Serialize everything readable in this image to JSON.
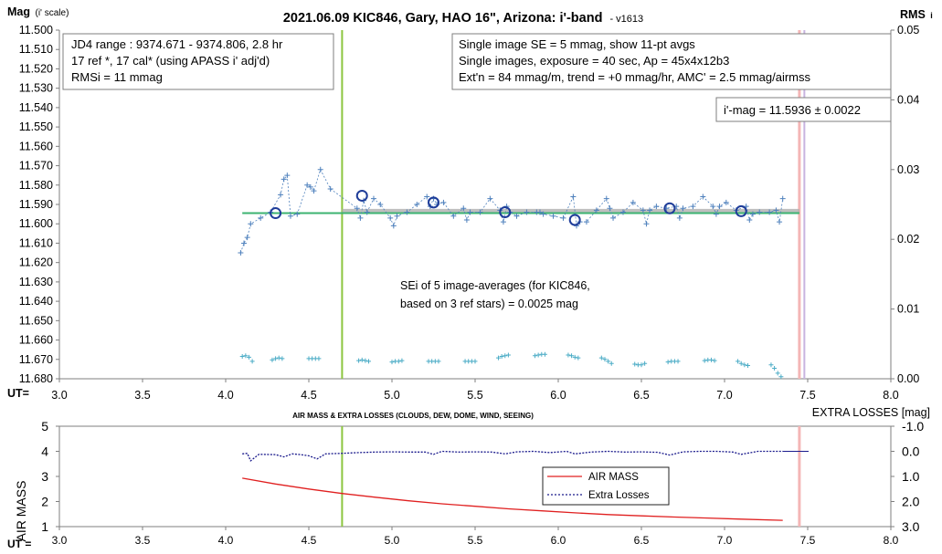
{
  "chart_data": [
    {
      "type": "scatter",
      "title": "2021.06.09 KIC846, Gary, HAO 16\", Arizona: i'-band",
      "version": "- v1613",
      "ylabel_main": "Mag",
      "ylabel_sub": "(i' scale)",
      "y2label_main": "RMS",
      "y2label_sub": "i",
      "xlabel": "UT=",
      "xlim": [
        3.0,
        8.0
      ],
      "ylim": [
        11.5,
        11.68
      ],
      "y_reversed": true,
      "y2lim": [
        0.0,
        0.05
      ],
      "x_ticks": [
        "3.0",
        "3.5",
        "4.0",
        "4.5",
        "5.0",
        "5.5",
        "6.0",
        "6.5",
        "7.0",
        "7.5",
        "8.0"
      ],
      "y_ticks": [
        "11.500",
        "11.510",
        "11.520",
        "11.530",
        "11.540",
        "11.550",
        "11.560",
        "11.570",
        "11.580",
        "11.590",
        "11.600",
        "11.610",
        "11.620",
        "11.630",
        "11.640",
        "11.650",
        "11.660",
        "11.670",
        "11.680"
      ],
      "y2_ticks": [
        "0.05",
        "0.04",
        "0.03",
        "0.02",
        "0.01",
        "0.00"
      ],
      "grid": false,
      "series": [
        {
          "role": "single-images",
          "color": "#4f81bd",
          "x": [
            4.09,
            4.11,
            4.13,
            4.15,
            4.21,
            4.27,
            4.33,
            4.35,
            4.37,
            4.39,
            4.43,
            4.49,
            4.51,
            4.53,
            4.57,
            4.63,
            4.79,
            4.81,
            4.83,
            4.85,
            4.89,
            4.93,
            4.99,
            5.01,
            5.03,
            5.09,
            5.15,
            5.21,
            5.23,
            5.25,
            5.27,
            5.31,
            5.37,
            5.43,
            5.45,
            5.47,
            5.53,
            5.59,
            5.65,
            5.67,
            5.69,
            5.71,
            5.75,
            5.81,
            5.87,
            5.89,
            5.91,
            5.97,
            6.03,
            6.09,
            6.11,
            6.13,
            6.17,
            6.23,
            6.29,
            6.31,
            6.33,
            6.39,
            6.45,
            6.51,
            6.53,
            6.55,
            6.59,
            6.65,
            6.71,
            6.73,
            6.75,
            6.81,
            6.87,
            6.93,
            6.95,
            6.97,
            7.01,
            7.07,
            7.13,
            7.15,
            7.17,
            7.21,
            7.27,
            7.31,
            7.33,
            7.35
          ],
          "y": [
            11.615,
            11.61,
            11.607,
            11.6,
            11.597,
            11.594,
            11.585,
            11.577,
            11.575,
            11.596,
            11.595,
            11.58,
            11.581,
            11.583,
            11.572,
            11.582,
            11.592,
            11.597,
            11.588,
            11.594,
            11.587,
            11.59,
            11.597,
            11.601,
            11.596,
            11.594,
            11.59,
            11.586,
            11.591,
            11.587,
            11.59,
            11.589,
            11.596,
            11.592,
            11.598,
            11.594,
            11.594,
            11.587,
            11.593,
            11.599,
            11.591,
            11.594,
            11.596,
            11.594,
            11.594,
            11.594,
            11.595,
            11.596,
            11.597,
            11.586,
            11.601,
            11.599,
            11.599,
            11.593,
            11.587,
            11.592,
            11.597,
            11.594,
            11.589,
            11.593,
            11.6,
            11.593,
            11.591,
            11.592,
            11.591,
            11.597,
            11.592,
            11.591,
            11.586,
            11.591,
            11.595,
            11.591,
            11.589,
            11.593,
            11.591,
            11.598,
            11.595,
            11.594,
            11.594,
            11.593,
            11.599,
            11.587
          ]
        },
        {
          "role": "11-pt-averages",
          "color": "#1f3d99",
          "x": [
            4.3,
            4.82,
            5.25,
            5.68,
            6.1,
            6.67,
            7.1
          ],
          "y": [
            11.5945,
            11.5855,
            11.589,
            11.594,
            11.598,
            11.592,
            11.5935
          ]
        },
        {
          "role": "rms-i",
          "color": "#4bacc6",
          "x": [
            4.1,
            4.12,
            4.14,
            4.16,
            4.28,
            4.3,
            4.32,
            4.34,
            4.5,
            4.52,
            4.54,
            4.56,
            4.8,
            4.82,
            4.84,
            4.86,
            5.0,
            5.02,
            5.04,
            5.06,
            5.22,
            5.24,
            5.26,
            5.28,
            5.44,
            5.46,
            5.48,
            5.5,
            5.64,
            5.66,
            5.68,
            5.7,
            5.86,
            5.88,
            5.9,
            5.92,
            6.06,
            6.08,
            6.1,
            6.12,
            6.26,
            6.28,
            6.3,
            6.32,
            6.46,
            6.48,
            6.5,
            6.52,
            6.66,
            6.68,
            6.7,
            6.72,
            6.88,
            6.9,
            6.92,
            6.94,
            7.08,
            7.1,
            7.12,
            7.14,
            7.28,
            7.3,
            7.32,
            7.34
          ],
          "y": [
            0.0032,
            0.0033,
            0.0031,
            0.0025,
            0.0027,
            0.0029,
            0.003,
            0.0029,
            0.0029,
            0.0029,
            0.0029,
            0.0029,
            0.0026,
            0.0027,
            0.0026,
            0.0025,
            0.0024,
            0.0025,
            0.0025,
            0.0026,
            0.0025,
            0.0025,
            0.0025,
            0.0025,
            0.0025,
            0.0025,
            0.0025,
            0.0025,
            0.003,
            0.0032,
            0.0033,
            0.0034,
            0.0033,
            0.0034,
            0.0035,
            0.0035,
            0.0034,
            0.0033,
            0.0031,
            0.003,
            0.003,
            0.0028,
            0.0025,
            0.0022,
            0.0021,
            0.002,
            0.002,
            0.0022,
            0.0024,
            0.0025,
            0.0025,
            0.0025,
            0.0026,
            0.0027,
            0.0027,
            0.0026,
            0.0025,
            0.0022,
            0.002,
            0.0019,
            0.002,
            0.0015,
            0.0008,
            0.0003
          ]
        }
      ],
      "fit_level": 11.5945,
      "fit_range": [
        4.1,
        7.45
      ],
      "reference_band": {
        "x": [
          4.7,
          7.45
        ],
        "y": 11.5935
      },
      "vertical_markers": [
        {
          "x": 4.7,
          "color": "#8cc63f"
        },
        {
          "x": 7.45,
          "color": "#f4b6b6"
        },
        {
          "x": 7.48,
          "color": "#c8b4e0"
        }
      ],
      "annotations": {
        "box_left": [
          "JD4 range : 9374.671 - 9374.806, 2.8  hr",
          "17 ref *, 17 cal* (using APASS i' adj'd)",
          "RMSi = 11 mmag"
        ],
        "box_right": [
          "Single image SE = 5 mmag, show 11-pt avgs",
          "Single images, exposure = 40 sec, Ap = 45x4x12b3",
          "Ext'n = 84 mmag/m, trend = +0 mmag/hr, AMC' = 2.5 mmag/airmss"
        ],
        "box_mag": "i'-mag = 11.5936 ± 0.0022",
        "box_sei": [
          "SEi of 5 image-averages (for KIC846,",
          "based on 3 ref stars) = 0.0025 mag"
        ]
      }
    },
    {
      "type": "line",
      "title": "AIR MASS & EXTRA LOSSES (CLOUDS, DEW, DOME, WIND, SEEING)",
      "ylabel": "AIR MASS",
      "y2label": "EXTRA LOSSES [mag]",
      "xlabel": "UT =",
      "xlim": [
        3.0,
        8.0
      ],
      "ylim": [
        1,
        5
      ],
      "y2lim": [
        -1.0,
        3.0
      ],
      "y2_reversed": true,
      "x_ticks": [
        "3.0",
        "3.5",
        "4.0",
        "4.5",
        "5.0",
        "5.5",
        "6.0",
        "6.5",
        "7.0",
        "7.5",
        "8.0"
      ],
      "y_ticks": [
        "5",
        "4",
        "3",
        "2",
        "1"
      ],
      "y2_ticks": [
        "-1.0",
        "0.0",
        "1.0",
        "2.0",
        "3.0"
      ],
      "legend_position": "lower-right",
      "series": [
        {
          "name": "AIR MASS",
          "color": "#e02020",
          "x": [
            4.1,
            4.3,
            4.5,
            4.7,
            4.9,
            5.1,
            5.3,
            5.5,
            5.7,
            5.9,
            6.1,
            6.3,
            6.5,
            6.7,
            6.9,
            7.1,
            7.35
          ],
          "y": [
            2.93,
            2.7,
            2.5,
            2.32,
            2.17,
            2.03,
            1.91,
            1.81,
            1.71,
            1.63,
            1.55,
            1.48,
            1.43,
            1.38,
            1.34,
            1.3,
            1.25
          ]
        },
        {
          "name": "Extra Losses",
          "color": "#1a1a8c",
          "x": [
            4.1,
            4.13,
            4.15,
            4.2,
            4.3,
            4.35,
            4.4,
            4.45,
            4.5,
            4.55,
            4.6,
            4.7,
            4.8,
            4.9,
            5.0,
            5.1,
            5.2,
            5.25,
            5.3,
            5.4,
            5.5,
            5.6,
            5.68,
            5.75,
            5.85,
            5.95,
            6.05,
            6.1,
            6.2,
            6.3,
            6.4,
            6.5,
            6.6,
            6.67,
            6.75,
            6.85,
            6.95,
            7.05,
            7.1,
            7.2,
            7.3,
            7.35
          ],
          "y": [
            0.1,
            0.08,
            0.38,
            0.12,
            0.13,
            0.22,
            0.1,
            0.13,
            0.18,
            0.3,
            0.1,
            0.08,
            0.05,
            0.03,
            0.02,
            0.03,
            0.03,
            0.12,
            0.0,
            0.03,
            0.02,
            0.03,
            0.1,
            0.02,
            0.0,
            0.05,
            0.0,
            0.1,
            0.03,
            0.0,
            0.03,
            0.02,
            0.04,
            0.15,
            0.02,
            0.0,
            0.0,
            0.03,
            0.12,
            0.0,
            0.0,
            0.0
          ]
        }
      ],
      "vertical_markers": [
        {
          "x": 4.7,
          "color": "#8cc63f"
        },
        {
          "x": 7.45,
          "color": "#f4b6b6"
        }
      ]
    }
  ]
}
